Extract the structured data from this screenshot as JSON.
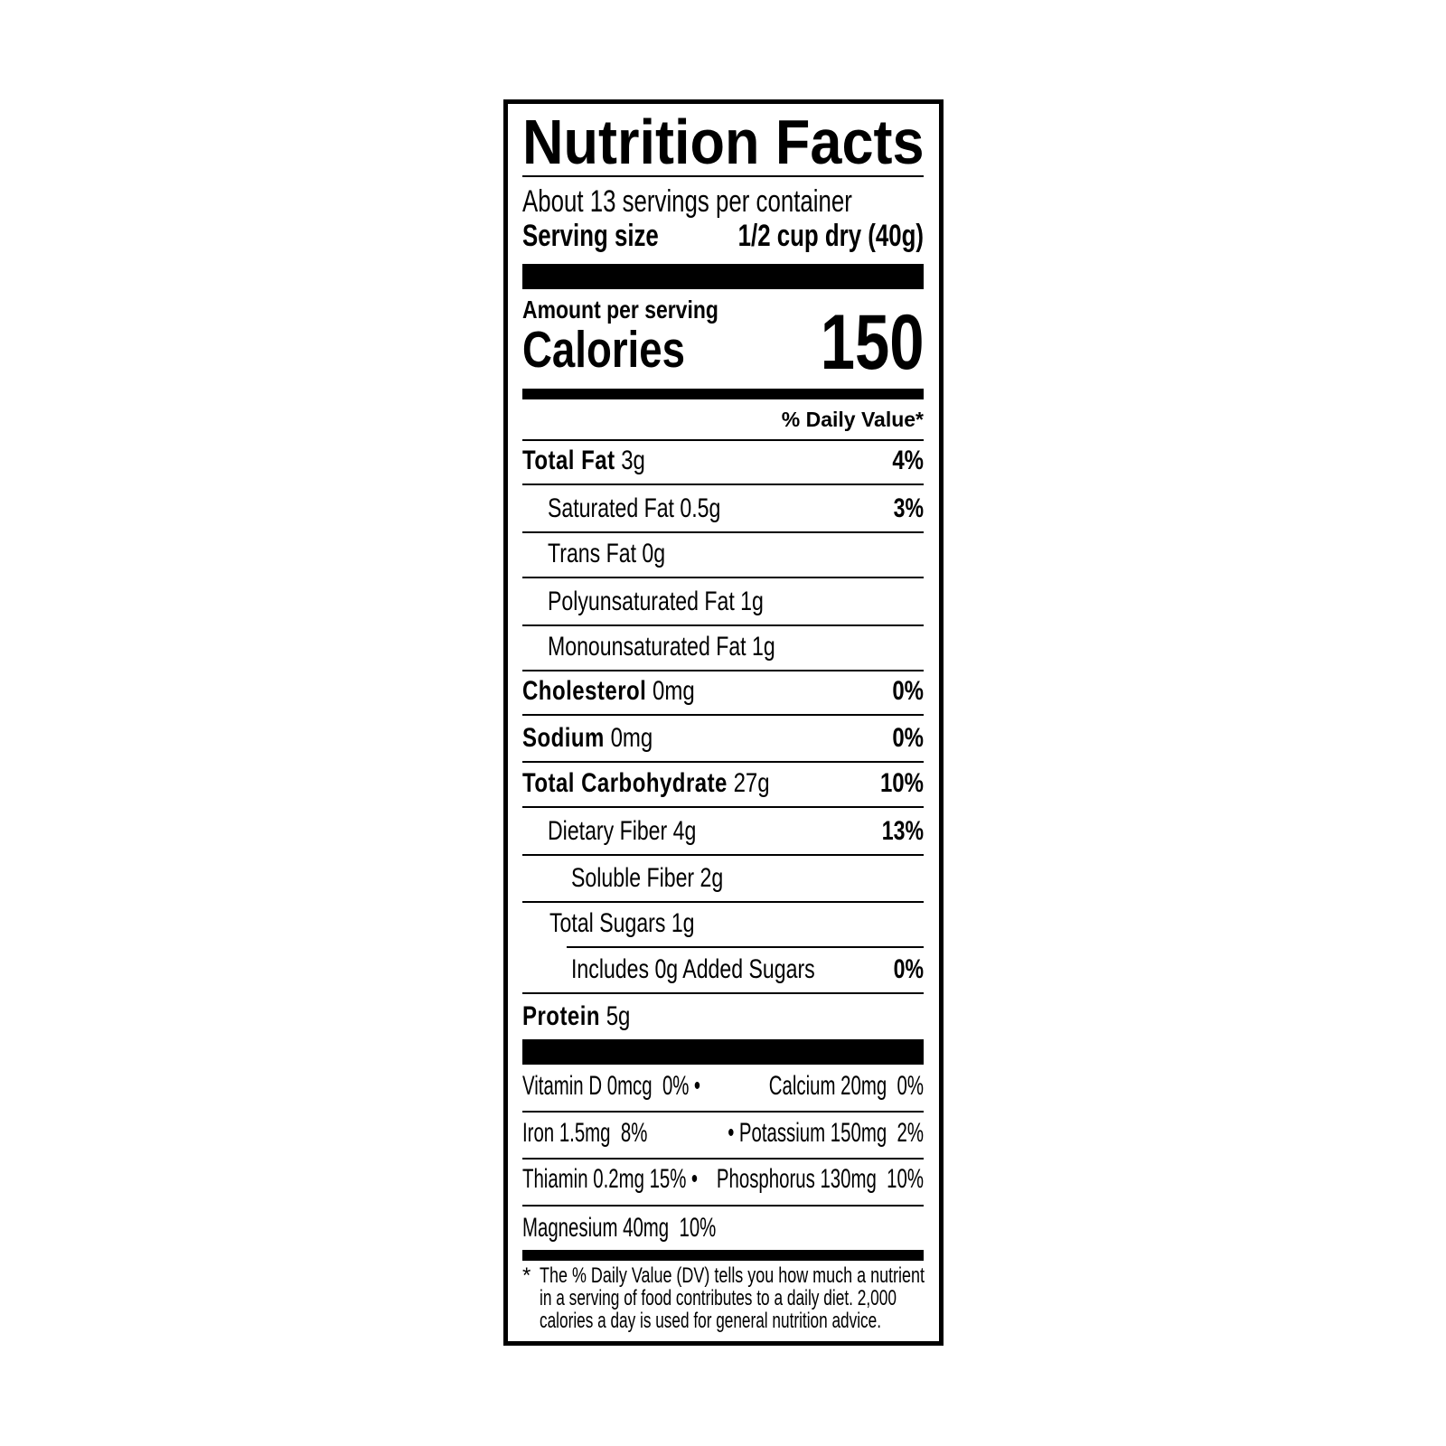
{
  "title": "Nutrition Facts",
  "servings_per_container": "About 13 servings per container",
  "serving_size": {
    "label": "Serving size",
    "value": "1/2 cup dry (40g)"
  },
  "amount_per_serving": "Amount per serving",
  "calories": {
    "label": "Calories",
    "value": "150"
  },
  "daily_value_header": "% Daily Value*",
  "nutrients": [
    {
      "label": "Total Fat",
      "amount": "3g",
      "dv": "4%",
      "level": 0
    },
    {
      "label": "Saturated Fat",
      "amount": "0.5g",
      "dv": "3%",
      "level": 1
    },
    {
      "label": "Trans Fat",
      "amount": "0g",
      "dv": "",
      "level": 1
    },
    {
      "label": "Polyunsaturated Fat",
      "amount": "1g",
      "dv": "",
      "level": 1
    },
    {
      "label": "Monounsaturated Fat",
      "amount": "1g",
      "dv": "",
      "level": 1
    },
    {
      "label": "Cholesterol",
      "amount": "0mg",
      "dv": "0%",
      "level": 0
    },
    {
      "label": "Sodium",
      "amount": "0mg",
      "dv": "0%",
      "level": 0
    },
    {
      "label": "Total Carbohydrate",
      "amount": "27g",
      "dv": "10%",
      "level": 0
    },
    {
      "label": "Dietary Fiber",
      "amount": "4g",
      "dv": "13%",
      "level": 1
    },
    {
      "label": "Soluble Fiber",
      "amount": "2g",
      "dv": "",
      "level": 2
    },
    {
      "label": "Total Sugars",
      "amount": "1g",
      "dv": "",
      "level": 1
    },
    {
      "label": "Includes 0g Added Sugars",
      "amount": "",
      "dv": "0%",
      "level": 2
    },
    {
      "label": "Protein",
      "amount": "5g",
      "dv": "",
      "level": 0
    }
  ],
  "micronutrients": [
    {
      "left": "Vitamin D 0mcg  0%",
      "right": "Calcium 20mg  0%"
    },
    {
      "left": "Iron 1.5mg  8%",
      "right": "Potassium 150mg  2%"
    },
    {
      "left": "Thiamin 0.2mg 15%",
      "right": "Phosphorus 130mg  10%"
    },
    {
      "left": "Magnesium 40mg  10%",
      "right": ""
    }
  ],
  "bullet": "•",
  "footnote": {
    "marker": "*",
    "lines": [
      "The % Daily Value (DV) tells you how much a nutrient",
      "in a serving of food contributes to a daily diet. 2,000",
      "calories a day is used for general nutrition advice."
    ]
  }
}
